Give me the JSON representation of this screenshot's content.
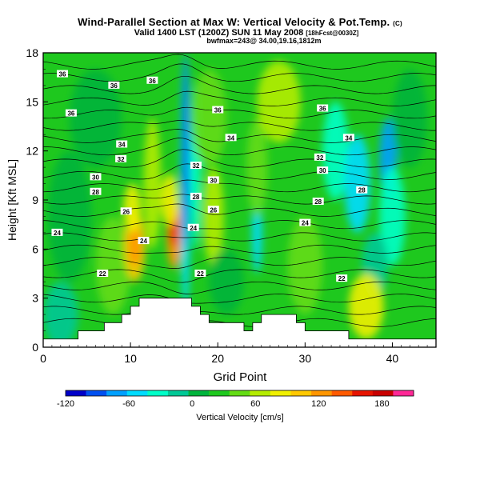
{
  "chart_data": {
    "type": "heatmap",
    "title": "Wind-Parallel Section at Max W: Vertical Velocity & Pot.Temp.",
    "title_mark": "(C)",
    "subtitle_1": "Valid 1400 LST (1200Z) SUN 11 May 2008",
    "subtitle_1_suffix": "[18hFcst@0030Z]",
    "subtitle_2": "bwfmax=243@ 34.00,19.16,1812m",
    "xlabel": "Grid Point",
    "ylabel": "Height [Kft MSL]",
    "xlim": [
      0,
      45
    ],
    "ylim": [
      0,
      18
    ],
    "x_ticks": [
      0,
      10,
      20,
      30,
      40
    ],
    "y_ticks": [
      0,
      3,
      6,
      9,
      12,
      15,
      18
    ],
    "colorbar": {
      "label": "Vertical Velocity [cm/s]",
      "tick_labels": [
        "-120",
        "-60",
        "0",
        "60",
        "120",
        "180"
      ],
      "tick_values": [
        -120,
        -60,
        0,
        60,
        120,
        180
      ],
      "range": [
        -120,
        210
      ],
      "colors": [
        "#0000c8",
        "#0050f0",
        "#00a0ff",
        "#00dcff",
        "#00ffc8",
        "#00c896",
        "#00b43c",
        "#1ec81e",
        "#64dc14",
        "#b4ec00",
        "#f0f000",
        "#ffc800",
        "#ff9600",
        "#ff5a00",
        "#e61400",
        "#c80000",
        "#ff2896"
      ]
    },
    "contour_labels": [
      {
        "text": "36",
        "x": 2.2,
        "y": 16.7
      },
      {
        "text": "36",
        "x": 8.1,
        "y": 16.0
      },
      {
        "text": "36",
        "x": 3.2,
        "y": 14.3
      },
      {
        "text": "36",
        "x": 12.5,
        "y": 16.3
      },
      {
        "text": "36",
        "x": 20.0,
        "y": 14.5
      },
      {
        "text": "36",
        "x": 32.0,
        "y": 14.6
      },
      {
        "text": "34",
        "x": 9.0,
        "y": 12.4
      },
      {
        "text": "34",
        "x": 21.5,
        "y": 12.8
      },
      {
        "text": "34",
        "x": 35.0,
        "y": 12.8
      },
      {
        "text": "32",
        "x": 8.9,
        "y": 11.5
      },
      {
        "text": "32",
        "x": 17.5,
        "y": 11.1
      },
      {
        "text": "32",
        "x": 31.7,
        "y": 11.6
      },
      {
        "text": "30",
        "x": 6.0,
        "y": 10.4
      },
      {
        "text": "30",
        "x": 19.5,
        "y": 10.2
      },
      {
        "text": "30",
        "x": 32.0,
        "y": 10.8
      },
      {
        "text": "28",
        "x": 6.0,
        "y": 9.5
      },
      {
        "text": "28",
        "x": 17.5,
        "y": 9.2
      },
      {
        "text": "28",
        "x": 31.5,
        "y": 8.9
      },
      {
        "text": "28",
        "x": 36.5,
        "y": 9.6
      },
      {
        "text": "26",
        "x": 9.5,
        "y": 8.3
      },
      {
        "text": "26",
        "x": 19.5,
        "y": 8.4
      },
      {
        "text": "24",
        "x": 1.6,
        "y": 7.0
      },
      {
        "text": "24",
        "x": 11.5,
        "y": 6.5
      },
      {
        "text": "24",
        "x": 17.2,
        "y": 7.3
      },
      {
        "text": "24",
        "x": 30.0,
        "y": 7.6
      },
      {
        "text": "22",
        "x": 6.8,
        "y": 4.5
      },
      {
        "text": "22",
        "x": 18.0,
        "y": 4.5
      },
      {
        "text": "22",
        "x": 34.2,
        "y": 4.2
      }
    ],
    "terrain_top_kft": [
      0.5,
      0.5,
      0.5,
      0.5,
      1.0,
      1.0,
      1.0,
      1.5,
      1.5,
      2.0,
      2.5,
      3.0,
      3.0,
      3.0,
      3.0,
      3.0,
      3.0,
      2.5,
      2.0,
      1.5,
      1.5,
      1.5,
      1.5,
      1.0,
      1.5,
      2.0,
      2.0,
      2.0,
      2.0,
      1.5,
      1.0,
      1.0,
      1.0,
      1.0,
      1.0,
      0.5,
      0.5,
      0.5,
      0.5,
      0.5,
      0.5,
      0.5,
      0.5,
      0.5,
      0.5,
      0.5
    ]
  }
}
